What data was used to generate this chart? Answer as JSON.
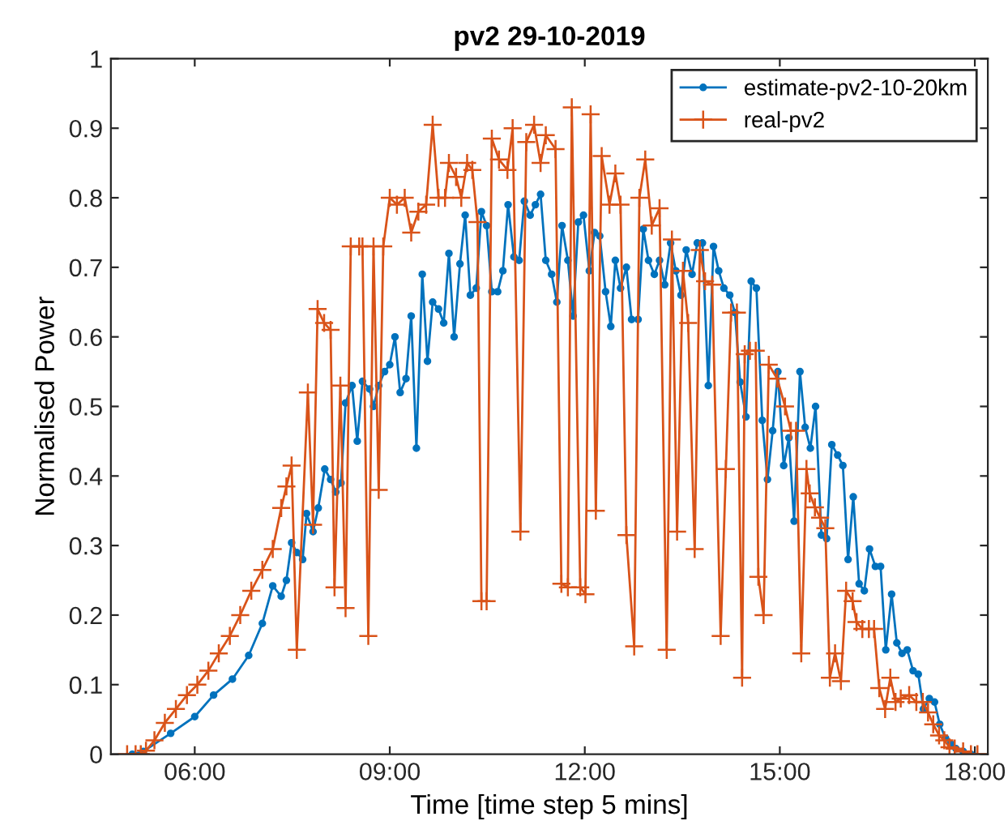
{
  "chart_data": {
    "type": "line",
    "title": "pv2 29-10-2019",
    "xlabel": "Time [time step 5 mins]",
    "ylabel": "Normalised Power",
    "xlim": [
      4.71,
      18.2
    ],
    "xticks": [
      {
        "value": 6,
        "label": "06:00"
      },
      {
        "value": 9,
        "label": "09:00"
      },
      {
        "value": 12,
        "label": "12:00"
      },
      {
        "value": 15,
        "label": "15:00"
      },
      {
        "value": 18,
        "label": "18:00"
      }
    ],
    "ylim": [
      0,
      1
    ],
    "yticks": [
      0,
      0.1,
      0.2,
      0.3,
      0.4,
      0.5,
      0.6,
      0.7,
      0.8,
      0.9,
      1
    ],
    "grid": false,
    "legend": "top right",
    "line_style": "solid",
    "series": [
      {
        "name": "estimate-pv2-10-20km",
        "color": "#0072bd",
        "marker": "circle",
        "x": [
          5.04,
          5.21,
          5.63,
          6.0,
          6.29,
          6.58,
          6.83,
          7.04,
          7.2,
          7.33,
          7.41,
          7.49,
          7.57,
          7.66,
          7.72,
          7.82,
          7.9,
          8.0,
          8.09,
          8.17,
          8.25,
          8.32,
          8.42,
          8.5,
          8.58,
          8.69,
          8.75,
          8.83,
          8.92,
          9.0,
          9.08,
          9.16,
          9.25,
          9.33,
          9.41,
          9.5,
          9.58,
          9.66,
          9.75,
          9.83,
          9.91,
          9.99,
          10.08,
          10.16,
          10.24,
          10.33,
          10.41,
          10.49,
          10.57,
          10.66,
          10.74,
          10.82,
          10.91,
          10.99,
          11.07,
          11.16,
          11.24,
          11.32,
          11.4,
          11.49,
          11.57,
          11.65,
          11.74,
          11.82,
          11.9,
          11.98,
          12.07,
          12.15,
          12.23,
          12.32,
          12.4,
          12.47,
          12.55,
          12.64,
          12.72,
          12.82,
          12.9,
          12.98,
          13.07,
          13.15,
          13.23,
          13.32,
          13.4,
          13.48,
          13.56,
          13.65,
          13.73,
          13.81,
          13.9,
          13.98,
          14.06,
          14.14,
          14.23,
          14.31,
          14.39,
          14.48,
          14.56,
          14.64,
          14.73,
          14.81,
          14.89,
          14.97,
          15.06,
          15.14,
          15.22,
          15.31,
          15.39,
          15.47,
          15.55,
          15.64,
          15.72,
          15.8,
          15.89,
          15.97,
          16.05,
          16.13,
          16.22,
          16.3,
          16.38,
          16.47,
          16.55,
          16.63,
          16.72,
          16.8,
          16.88,
          16.96,
          17.05,
          17.13,
          17.21,
          17.3,
          17.38,
          17.46,
          17.55,
          17.63,
          17.71,
          17.82,
          17.94
        ],
        "values": [
          0,
          0.004,
          0.03,
          0.054,
          0.085,
          0.108,
          0.142,
          0.188,
          0.242,
          0.227,
          0.25,
          0.304,
          0.29,
          0.28,
          0.346,
          0.32,
          0.354,
          0.41,
          0.395,
          0.377,
          0.39,
          0.505,
          0.53,
          0.45,
          0.536,
          0.525,
          0.5,
          0.53,
          0.55,
          0.56,
          0.6,
          0.52,
          0.54,
          0.63,
          0.44,
          0.69,
          0.565,
          0.65,
          0.64,
          0.62,
          0.72,
          0.6,
          0.705,
          0.775,
          0.66,
          0.67,
          0.78,
          0.76,
          0.665,
          0.665,
          0.695,
          0.79,
          0.715,
          0.71,
          0.795,
          0.775,
          0.79,
          0.805,
          0.71,
          0.69,
          0.65,
          0.76,
          0.71,
          0.63,
          0.765,
          0.775,
          0.695,
          0.75,
          0.745,
          0.665,
          0.615,
          0.71,
          0.67,
          0.7,
          0.625,
          0.625,
          0.755,
          0.71,
          0.69,
          0.71,
          0.675,
          0.735,
          0.695,
          0.66,
          0.725,
          0.69,
          0.735,
          0.735,
          0.53,
          0.73,
          0.695,
          0.67,
          0.66,
          0.635,
          0.535,
          0.485,
          0.68,
          0.67,
          0.48,
          0.395,
          0.465,
          0.55,
          0.415,
          0.455,
          0.335,
          0.55,
          0.47,
          0.44,
          0.5,
          0.315,
          0.31,
          0.445,
          0.43,
          0.415,
          0.28,
          0.37,
          0.245,
          0.235,
          0.295,
          0.27,
          0.27,
          0.15,
          0.23,
          0.16,
          0.145,
          0.15,
          0.12,
          0.115,
          0.065,
          0.08,
          0.075,
          0.043,
          0.023,
          0.015,
          0.008,
          0.004,
          0
        ]
      },
      {
        "name": "real-pv2",
        "color": "#d95319",
        "marker": "cross",
        "x": [
          4.96,
          5.09,
          5.17,
          5.25,
          5.38,
          5.54,
          5.71,
          5.88,
          6.04,
          6.21,
          6.37,
          6.54,
          6.7,
          6.87,
          7.04,
          7.2,
          7.33,
          7.41,
          7.49,
          7.57,
          7.74,
          7.82,
          7.89,
          7.99,
          8.09,
          8.15,
          8.24,
          8.32,
          8.4,
          8.53,
          8.58,
          8.67,
          8.75,
          8.83,
          8.9,
          9.0,
          9.11,
          9.23,
          9.33,
          9.44,
          9.56,
          9.66,
          9.75,
          9.85,
          9.91,
          10.02,
          10.1,
          10.19,
          10.27,
          10.35,
          10.41,
          10.49,
          10.57,
          10.68,
          10.81,
          10.89,
          11.01,
          11.1,
          11.22,
          11.32,
          11.4,
          11.55,
          11.64,
          11.74,
          11.8,
          11.93,
          12.01,
          12.09,
          12.17,
          12.26,
          12.38,
          12.47,
          12.55,
          12.64,
          12.76,
          12.84,
          12.93,
          13.03,
          13.15,
          13.26,
          13.34,
          13.42,
          13.51,
          13.59,
          13.69,
          13.77,
          13.85,
          13.96,
          14.09,
          14.17,
          14.25,
          14.34,
          14.42,
          14.46,
          14.54,
          14.63,
          14.67,
          14.75,
          14.83,
          14.96,
          15.08,
          15.17,
          15.25,
          15.33,
          15.41,
          15.46,
          15.54,
          15.62,
          15.7,
          15.77,
          15.85,
          15.94,
          16.02,
          16.12,
          16.18,
          16.27,
          16.37,
          16.45,
          16.53,
          16.62,
          16.7,
          16.78,
          16.86,
          16.99,
          17.1,
          17.2,
          17.28,
          17.36,
          17.45,
          17.53,
          17.61,
          17.69,
          17.82,
          17.94,
          18.04
        ],
        "values": [
          0,
          0,
          0,
          0.005,
          0.02,
          0.045,
          0.065,
          0.085,
          0.1,
          0.12,
          0.145,
          0.17,
          0.2,
          0.235,
          0.265,
          0.295,
          0.354,
          0.385,
          0.415,
          0.15,
          0.52,
          0.33,
          0.64,
          0.62,
          0.61,
          0.24,
          0.53,
          0.21,
          0.73,
          0.73,
          0.73,
          0.17,
          0.73,
          0.38,
          0.73,
          0.8,
          0.79,
          0.8,
          0.75,
          0.78,
          0.79,
          0.905,
          0.8,
          0.8,
          0.85,
          0.83,
          0.8,
          0.85,
          0.84,
          0.765,
          0.22,
          0.22,
          0.885,
          0.855,
          0.84,
          0.9,
          0.32,
          0.88,
          0.905,
          0.85,
          0.89,
          0.87,
          0.245,
          0.24,
          0.93,
          0.24,
          0.23,
          0.92,
          0.35,
          0.86,
          0.79,
          0.835,
          0.79,
          0.315,
          0.155,
          0.8,
          0.855,
          0.76,
          0.785,
          0.15,
          0.74,
          0.32,
          0.695,
          0.62,
          0.295,
          0.725,
          0.68,
          0.675,
          0.17,
          0.41,
          0.635,
          0.635,
          0.11,
          0.575,
          0.58,
          0.58,
          0.255,
          0.2,
          0.56,
          0.54,
          0.5,
          0.465,
          0.465,
          0.145,
          0.41,
          0.375,
          0.355,
          0.34,
          0.325,
          0.11,
          0.145,
          0.105,
          0.235,
          0.22,
          0.19,
          0.18,
          0.18,
          0.18,
          0.095,
          0.065,
          0.11,
          0.075,
          0.08,
          0.085,
          0.075,
          0.075,
          0.06,
          0.043,
          0.027,
          0.02,
          0.01,
          0.008,
          0.004,
          0,
          0
        ]
      }
    ]
  }
}
